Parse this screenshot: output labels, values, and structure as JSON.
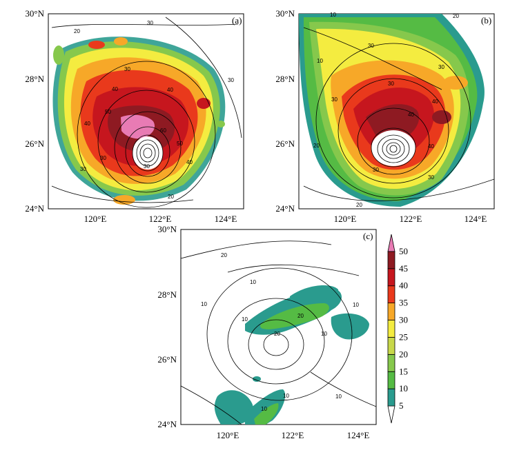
{
  "panels": [
    {
      "letter": "(a)",
      "lat_labels": [
        "30°N",
        "28°N",
        "26°N",
        "24°N"
      ],
      "lon_labels": [
        "120°E",
        "122°E",
        "124°E"
      ],
      "contour_labels": [
        "20",
        "30",
        "30",
        "40",
        "40",
        "50",
        "40",
        "30",
        "20",
        "30",
        "30",
        "50",
        "60",
        "40",
        "30"
      ]
    },
    {
      "letter": "(b)",
      "lat_labels": [
        "30°N",
        "28°N",
        "26°N",
        "24°N"
      ],
      "lon_labels": [
        "120°E",
        "122°E",
        "124°E"
      ],
      "contour_labels": [
        "10",
        "20",
        "30",
        "10",
        "30",
        "30",
        "30",
        "40",
        "40",
        "40",
        "20",
        "30",
        "20",
        "30"
      ]
    },
    {
      "letter": "(c)",
      "lat_labels": [
        "30°N",
        "28°N",
        "26°N",
        "24°N"
      ],
      "lon_labels": [
        "120°E",
        "122°E",
        "124°E"
      ],
      "contour_labels": [
        "20",
        "10",
        "10",
        "10",
        "10",
        "20",
        "20",
        "10",
        "10",
        "10",
        "10"
      ]
    }
  ],
  "colorbar": {
    "labels": [
      "5",
      "10",
      "15",
      "20",
      "25",
      "30",
      "35",
      "40",
      "45",
      "50"
    ],
    "colors": [
      "#ffffff",
      "#2a9b8e",
      "#55bb44",
      "#86c84c",
      "#c8d84a",
      "#f4ec40",
      "#f7a828",
      "#e9391c",
      "#c6161e",
      "#8e1a22",
      "#e87bb4"
    ]
  }
}
